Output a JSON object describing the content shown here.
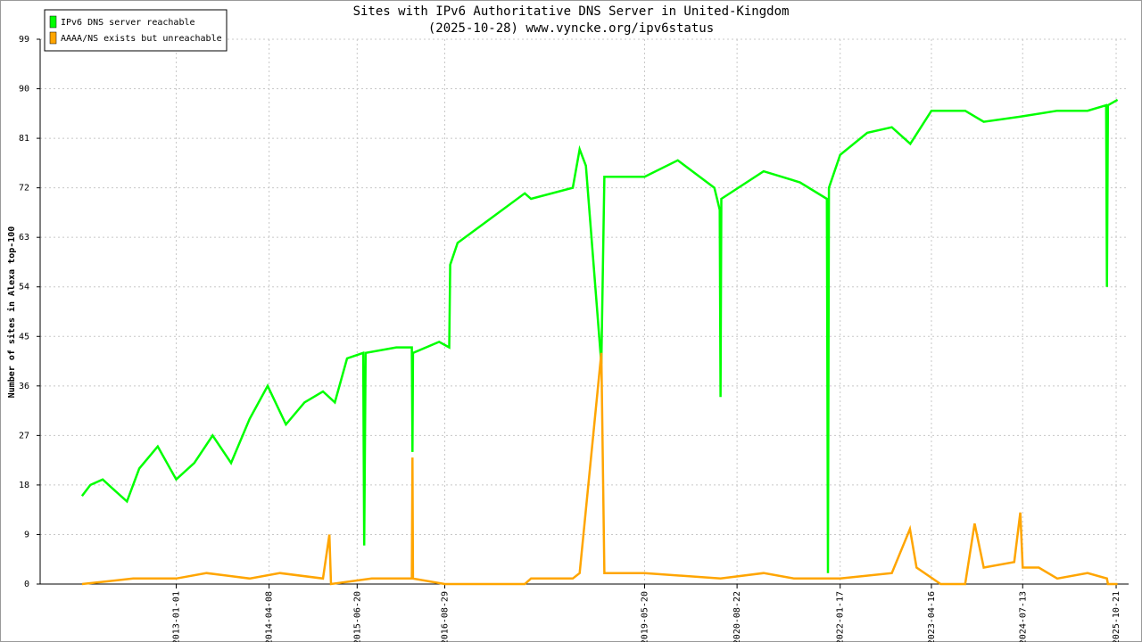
{
  "chart_data": {
    "type": "line",
    "title": "Sites with IPv6 Authoritative DNS Server in United-Kingdom",
    "subtitle": "(2025-10-28) www.vyncke.org/ipv6status",
    "y_label": "Number of sites in Alexa top-100",
    "xlim": [
      "2011-02-24",
      "2025-12-22"
    ],
    "xticks": [
      "2013-01-01",
      "2014-04-08",
      "2015-06-20",
      "2016-08-29",
      "2019-05-20",
      "2020-08-22",
      "2022-01-17",
      "2023-04-16",
      "2024-07-13",
      "2025-10-21"
    ],
    "ylim": [
      0,
      99
    ],
    "yticks": [
      0,
      9,
      18,
      27,
      36,
      45,
      54,
      63,
      72,
      81,
      90,
      99
    ],
    "grid": true,
    "legend": "upper left",
    "series": [
      {
        "name": "IPv6 DNS server reachable",
        "color": "#00ff00",
        "x": [
          "2011-09-20",
          "2011-11-01",
          "2012-01-01",
          "2012-03-01",
          "2012-05-01",
          "2012-07-01",
          "2012-10-01",
          "2013-01-01",
          "2013-04-01",
          "2013-07-01",
          "2013-10-01",
          "2014-01-01",
          "2014-04-01",
          "2014-07-01",
          "2014-10-01",
          "2015-01-01",
          "2015-03-01",
          "2015-05-01",
          "2015-07-20",
          "2015-07-25",
          "2015-08-01",
          "2016-01-01",
          "2016-03-18",
          "2016-03-21",
          "2016-03-24",
          "2016-08-01",
          "2016-09-20",
          "2016-09-25",
          "2016-11-01",
          "2017-10-01",
          "2017-11-01",
          "2018-05-28",
          "2018-07-01",
          "2018-08-01",
          "2018-10-17",
          "2018-11-01",
          "2019-05-20",
          "2019-11-01",
          "2020-05-01",
          "2020-05-28",
          "2020-06-01",
          "2020-06-05",
          "2021-01-01",
          "2021-07-01",
          "2021-11-12",
          "2021-11-17",
          "2021-11-22",
          "2022-01-17",
          "2022-06-01",
          "2022-10-01",
          "2023-01-01",
          "2023-04-16",
          "2023-10-01",
          "2024-01-01",
          "2024-07-13",
          "2025-01-01",
          "2025-06-01",
          "2025-09-01",
          "2025-09-05",
          "2025-09-10",
          "2025-10-28"
        ],
        "values": [
          16,
          18,
          19,
          17,
          15,
          21,
          25,
          19,
          22,
          27,
          22,
          30,
          36,
          29,
          33,
          35,
          33,
          41,
          42,
          7,
          42,
          43,
          43,
          24,
          42,
          44,
          43,
          58,
          62,
          71,
          70,
          72,
          79,
          76,
          40,
          74,
          74,
          77,
          72,
          68,
          34,
          70,
          75,
          73,
          70,
          2,
          72,
          78,
          82,
          83,
          80,
          86,
          86,
          84,
          85,
          86,
          86,
          87,
          54,
          87,
          88
        ]
      },
      {
        "name": "AAAA/NS exists but unreachable",
        "color": "#ffa500",
        "x": [
          "2011-09-20",
          "2012-06-01",
          "2013-01-01",
          "2013-06-01",
          "2014-01-01",
          "2014-06-01",
          "2015-01-01",
          "2015-02-02",
          "2015-02-10",
          "2015-09-01",
          "2016-03-18",
          "2016-03-21",
          "2016-03-24",
          "2016-08-29",
          "2017-10-01",
          "2017-11-01",
          "2018-05-28",
          "2018-07-01",
          "2018-10-17",
          "2018-11-01",
          "2019-05-20",
          "2020-06-01",
          "2021-01-01",
          "2021-06-01",
          "2022-01-17",
          "2022-10-01",
          "2022-12-30",
          "2023-02-01",
          "2023-06-01",
          "2023-10-01",
          "2023-11-17",
          "2024-01-01",
          "2024-06-01",
          "2024-07-01",
          "2024-07-13",
          "2024-10-01",
          "2025-01-01",
          "2025-06-01",
          "2025-09-05",
          "2025-09-10",
          "2025-10-28"
        ],
        "values": [
          0,
          1,
          1,
          2,
          1,
          2,
          1,
          9,
          0,
          1,
          1,
          23,
          1,
          0,
          0,
          1,
          1,
          2,
          42,
          2,
          2,
          1,
          2,
          1,
          1,
          2,
          10,
          3,
          0,
          0,
          11,
          3,
          4,
          13,
          3,
          3,
          1,
          2,
          1,
          0,
          0
        ]
      }
    ]
  }
}
